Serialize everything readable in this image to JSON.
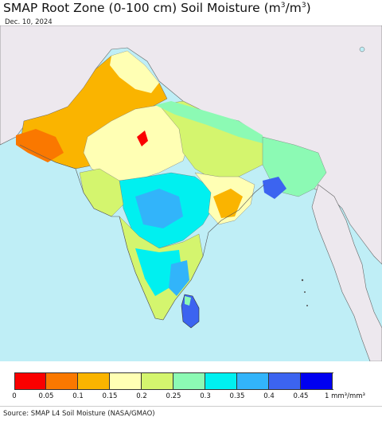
{
  "title": {
    "main": "SMAP Root Zone (0-100 cm) Soil Moisture (m",
    "sup1": "3",
    "mid": "/m",
    "sup2": "3",
    "end": ")"
  },
  "date": "Dec. 10, 2024",
  "legend": {
    "colors": [
      "#fa0000",
      "#fa7800",
      "#fab400",
      "#ffffb4",
      "#d4f56e",
      "#8cfab4",
      "#00f0f0",
      "#32b4fa",
      "#3c64f0",
      "#0000f0"
    ],
    "ticks": [
      "0",
      "0.05",
      "0.1",
      "0.15",
      "0.2",
      "0.25",
      "0.3",
      "0.35",
      "0.4",
      "0.45",
      "1 mm³/mm³"
    ],
    "values": [
      0,
      0.05,
      0.1,
      0.15,
      0.2,
      0.25,
      0.3,
      0.35,
      0.4,
      0.45,
      1
    ]
  },
  "source": "Source: SMAP L4 Soil Moisture (NASA/GMAO)",
  "map_colors": {
    "ocean": "#bfeef6",
    "land_nodata": "#ede8ee",
    "border": "#555555"
  }
}
